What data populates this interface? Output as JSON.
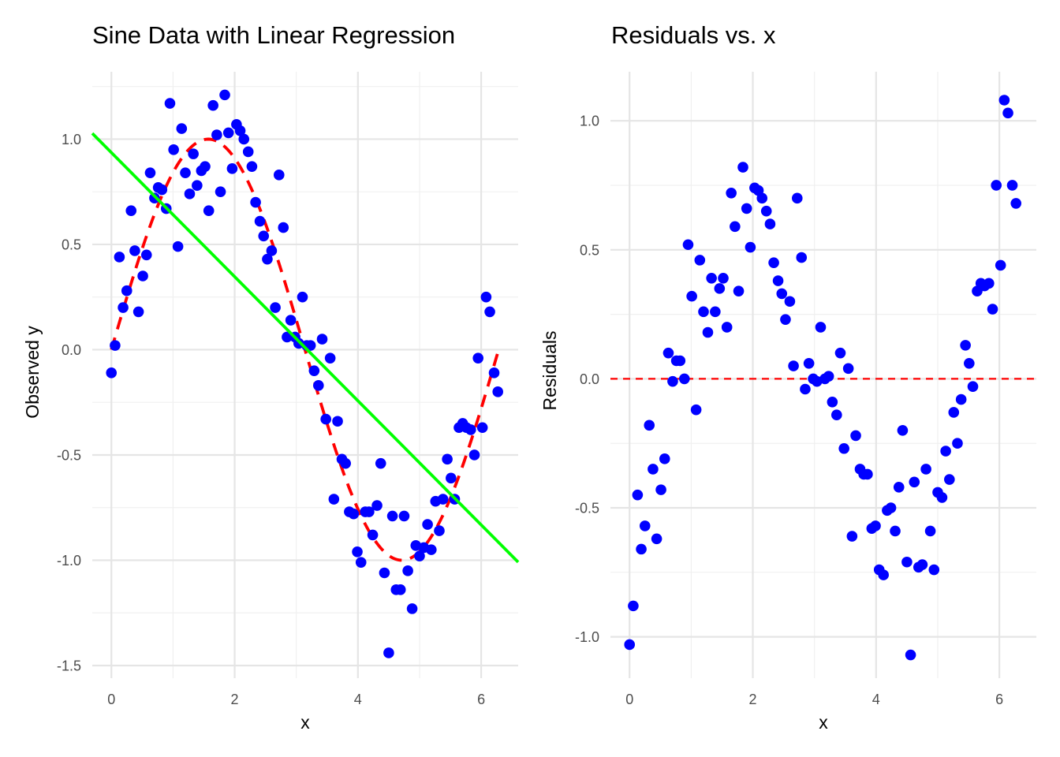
{
  "chart_data": [
    {
      "type": "scatter",
      "title": "Sine Data with Linear Regression",
      "xlabel": "x",
      "ylabel": "Observed y",
      "xlim": [
        -0.31,
        6.6
      ],
      "ylim": [
        -1.56,
        1.32
      ],
      "x_ticks": [
        0,
        2,
        4,
        6
      ],
      "x_tick_labels": [
        "0",
        "2",
        "4",
        "6"
      ],
      "y_ticks": [
        1.0,
        0.5,
        0.0,
        -0.5,
        -1.0,
        -1.5
      ],
      "y_tick_labels": [
        "1.0",
        "0.5",
        "0.0",
        "-0.5",
        "-1.0",
        "-1.5"
      ],
      "grid": true,
      "legend": "none",
      "colors": {
        "points": "#0000ff",
        "true_curve": "#ff0000",
        "fit_line": "#00ff00"
      },
      "series": [
        {
          "kind": "points",
          "x": [
            0.0,
            0.06,
            0.13,
            0.19,
            0.25,
            0.32,
            0.38,
            0.44,
            0.51,
            0.57,
            0.63,
            0.7,
            0.76,
            0.82,
            0.89,
            0.95,
            1.01,
            1.08,
            1.14,
            1.2,
            1.27,
            1.33,
            1.39,
            1.46,
            1.52,
            1.58,
            1.65,
            1.71,
            1.77,
            1.84,
            1.9,
            1.96,
            2.03,
            2.09,
            2.15,
            2.22,
            2.28,
            2.34,
            2.41,
            2.47,
            2.53,
            2.6,
            2.66,
            2.72,
            2.79,
            2.85,
            2.91,
            2.98,
            3.04,
            3.1,
            3.17,
            3.23,
            3.29,
            3.36,
            3.42,
            3.48,
            3.55,
            3.61,
            3.67,
            3.74,
            3.8,
            3.86,
            3.93,
            3.99,
            4.05,
            4.12,
            4.18,
            4.24,
            4.31,
            4.37,
            4.43,
            4.5,
            4.56,
            4.62,
            4.69,
            4.75,
            4.81,
            4.88,
            4.94,
            5.0,
            5.07,
            5.13,
            5.19,
            5.26,
            5.32,
            5.38,
            5.45,
            5.51,
            5.57,
            5.64,
            5.7,
            5.76,
            5.83,
            5.89,
            5.95,
            6.02,
            6.08,
            6.14,
            6.21,
            6.27
          ],
          "y": [
            -0.11,
            0.02,
            0.44,
            0.2,
            0.28,
            0.66,
            0.47,
            0.18,
            0.35,
            0.45,
            0.84,
            0.72,
            0.77,
            0.76,
            0.67,
            1.17,
            0.95,
            0.49,
            1.05,
            0.84,
            0.74,
            0.93,
            0.78,
            0.85,
            0.87,
            0.66,
            1.16,
            1.02,
            0.75,
            1.21,
            1.03,
            0.86,
            1.07,
            1.04,
            1.0,
            0.94,
            0.87,
            0.7,
            0.61,
            0.54,
            0.43,
            0.47,
            0.2,
            0.83,
            0.58,
            0.06,
            0.14,
            0.06,
            0.03,
            0.25,
            0.02,
            0.02,
            -0.1,
            -0.17,
            0.05,
            -0.33,
            -0.04,
            -0.71,
            -0.34,
            -0.52,
            -0.54,
            -0.77,
            -0.78,
            -0.96,
            -1.01,
            -0.77,
            -0.77,
            -0.88,
            -0.74,
            -0.54,
            -1.06,
            -1.44,
            -0.79,
            -1.14,
            -1.14,
            -0.79,
            -1.05,
            -1.23,
            -0.93,
            -0.98,
            -0.94,
            -0.83,
            -0.95,
            -0.72,
            -0.86,
            -0.71,
            -0.52,
            -0.61,
            -0.71,
            -0.37,
            -0.35,
            -0.37,
            -0.38,
            -0.5,
            -0.04,
            -0.37,
            0.25,
            0.18,
            -0.11,
            -0.2
          ]
        },
        {
          "kind": "true_curve",
          "function": "sin(x)",
          "style": "dashed",
          "x_range": [
            0,
            6.28
          ]
        },
        {
          "kind": "regression_line",
          "intercept": 0.936,
          "slope": -0.2947,
          "x_range": [
            -0.31,
            6.6
          ]
        }
      ]
    },
    {
      "type": "scatter",
      "title": "Residuals vs. x",
      "xlabel": "x",
      "ylabel": "Residuals",
      "xlim": [
        -0.31,
        6.6
      ],
      "ylim": [
        -1.16,
        1.19
      ],
      "x_ticks": [
        0,
        2,
        4,
        6
      ],
      "x_tick_labels": [
        "0",
        "2",
        "4",
        "6"
      ],
      "y_ticks": [
        1.0,
        0.5,
        0.0,
        -0.5,
        -1.0
      ],
      "y_tick_labels": [
        "1.0",
        "0.5",
        "0.0",
        "-0.5",
        "-1.0"
      ],
      "grid": true,
      "legend": "none",
      "reference_line": {
        "y": 0,
        "style": "dashed",
        "color": "#ff0000"
      },
      "colors": {
        "points": "#0000ff"
      },
      "series": [
        {
          "kind": "points",
          "x": [
            0.0,
            0.06,
            0.13,
            0.19,
            0.25,
            0.32,
            0.38,
            0.44,
            0.51,
            0.57,
            0.63,
            0.7,
            0.76,
            0.82,
            0.89,
            0.95,
            1.01,
            1.08,
            1.14,
            1.2,
            1.27,
            1.33,
            1.39,
            1.46,
            1.52,
            1.58,
            1.65,
            1.71,
            1.77,
            1.84,
            1.9,
            1.96,
            2.03,
            2.09,
            2.15,
            2.22,
            2.28,
            2.34,
            2.41,
            2.47,
            2.53,
            2.6,
            2.66,
            2.72,
            2.79,
            2.85,
            2.91,
            2.98,
            3.04,
            3.1,
            3.17,
            3.23,
            3.29,
            3.36,
            3.42,
            3.48,
            3.55,
            3.61,
            3.67,
            3.74,
            3.8,
            3.86,
            3.93,
            3.99,
            4.05,
            4.12,
            4.18,
            4.24,
            4.31,
            4.37,
            4.43,
            4.5,
            4.56,
            4.62,
            4.69,
            4.75,
            4.81,
            4.88,
            4.94,
            5.0,
            5.07,
            5.13,
            5.19,
            5.26,
            5.32,
            5.38,
            5.45,
            5.51,
            5.57,
            5.64,
            5.7,
            5.76,
            5.83,
            5.89,
            5.95,
            6.02,
            6.08,
            6.14,
            6.21,
            6.27
          ],
          "y": [
            -1.03,
            -0.88,
            -0.45,
            -0.66,
            -0.57,
            -0.18,
            -0.35,
            -0.62,
            -0.43,
            -0.31,
            0.1,
            -0.01,
            0.07,
            0.07,
            0.0,
            0.52,
            0.32,
            -0.12,
            0.46,
            0.26,
            0.18,
            0.39,
            0.26,
            0.35,
            0.39,
            0.2,
            0.72,
            0.59,
            0.34,
            0.82,
            0.66,
            0.51,
            0.74,
            0.73,
            0.7,
            0.65,
            0.6,
            0.45,
            0.38,
            0.33,
            0.23,
            0.3,
            0.05,
            0.7,
            0.47,
            -0.04,
            0.06,
            0.0,
            -0.01,
            0.2,
            0.0,
            0.01,
            -0.09,
            -0.14,
            0.1,
            -0.27,
            0.04,
            -0.61,
            -0.22,
            -0.35,
            -0.37,
            -0.37,
            -0.58,
            -0.57,
            -0.74,
            -0.76,
            -0.51,
            -0.5,
            -0.59,
            -0.42,
            -0.2,
            -0.71,
            -1.07,
            -0.4,
            -0.73,
            -0.72,
            -0.35,
            -0.59,
            -0.74,
            -0.44,
            -0.46,
            -0.28,
            -0.39,
            -0.13,
            -0.25,
            -0.08,
            0.13,
            0.06,
            -0.03,
            0.34,
            0.37,
            0.36,
            0.37,
            0.27,
            0.75,
            0.44,
            1.08,
            1.03,
            0.75,
            0.68
          ]
        }
      ]
    }
  ]
}
